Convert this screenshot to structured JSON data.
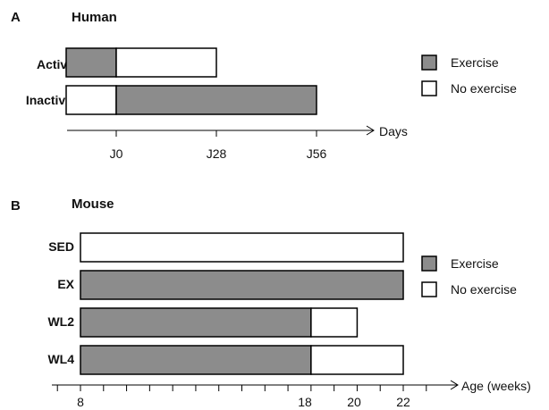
{
  "colors": {
    "exercise": "#8c8c8c",
    "no_exercise": "#ffffff",
    "stroke": "#000000"
  },
  "panel_a": {
    "letter": "A",
    "title": "Human",
    "axis_title": "Days",
    "tick_labels": [
      "J0",
      "J28",
      "J56"
    ],
    "legend": {
      "exercise": "Exercise",
      "no_exercise": "No exercise"
    },
    "rows": [
      {
        "label": "Active",
        "segments": [
          {
            "from": -14,
            "to": 0,
            "state": "exercise"
          },
          {
            "from": 0,
            "to": 28,
            "state": "no_exercise"
          }
        ]
      },
      {
        "label": "Inactive",
        "segments": [
          {
            "from": -14,
            "to": 0,
            "state": "no_exercise"
          },
          {
            "from": 0,
            "to": 56,
            "state": "exercise"
          }
        ]
      }
    ]
  },
  "panel_b": {
    "letter": "B",
    "title": "Mouse",
    "axis_title": "Age (weeks)",
    "tick_labels": [
      "8",
      "18",
      "20",
      "22"
    ],
    "legend": {
      "exercise": "Exercise",
      "no_exercise": "No exercise"
    },
    "rows": [
      {
        "label": "SED",
        "segments": [
          {
            "from": 8,
            "to": 22,
            "state": "no_exercise"
          }
        ]
      },
      {
        "label": "EX",
        "segments": [
          {
            "from": 8,
            "to": 22,
            "state": "exercise"
          }
        ]
      },
      {
        "label": "WL2",
        "segments": [
          {
            "from": 8,
            "to": 18,
            "state": "exercise"
          },
          {
            "from": 18,
            "to": 20,
            "state": "no_exercise"
          }
        ]
      },
      {
        "label": "WL4",
        "segments": [
          {
            "from": 8,
            "to": 18,
            "state": "exercise"
          },
          {
            "from": 18,
            "to": 22,
            "state": "no_exercise"
          }
        ]
      }
    ]
  }
}
